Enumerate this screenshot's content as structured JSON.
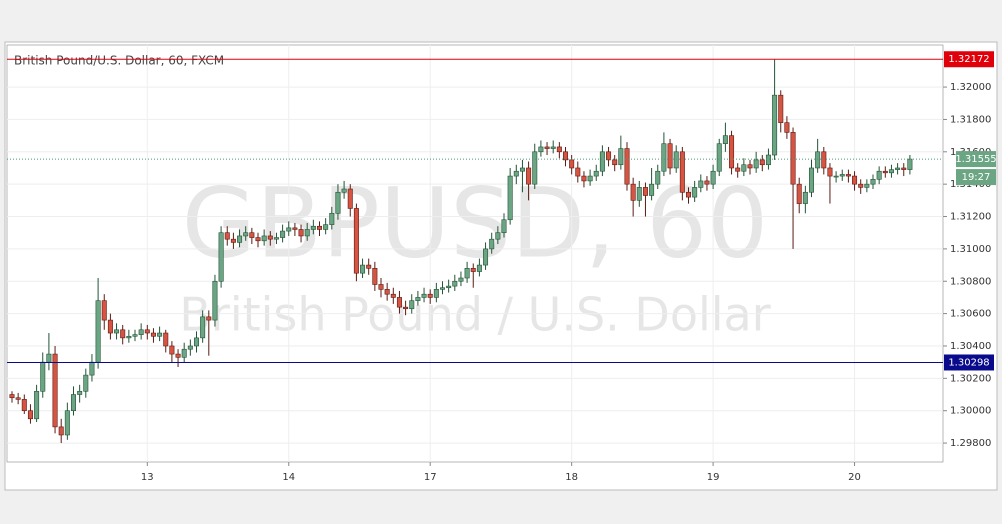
{
  "chart_data": {
    "type": "candlestick",
    "title": "British Pound/U.S. Dollar, 60, FXCM",
    "watermark": "GBPUSD, 60",
    "watermark_subtitle": "British Pound / U.S. Dollar",
    "countdown": "19:27",
    "up_color": "#6ba583",
    "down_color": "#d75442",
    "ylim": [
      1.29683,
      1.3226
    ],
    "yticks": [
      {
        "value": 1.298,
        "label": "1.29800"
      },
      {
        "value": 1.3,
        "label": "1.30000"
      },
      {
        "value": 1.302,
        "label": "1.30200"
      },
      {
        "value": 1.304,
        "label": "1.30400"
      },
      {
        "value": 1.306,
        "label": "1.30600"
      },
      {
        "value": 1.308,
        "label": "1.30800"
      },
      {
        "value": 1.31,
        "label": "1.31000"
      },
      {
        "value": 1.312,
        "label": "1.31200"
      },
      {
        "value": 1.314,
        "label": "1.31400"
      },
      {
        "value": 1.316,
        "label": "1.31600"
      },
      {
        "value": 1.318,
        "label": "1.31800"
      },
      {
        "value": 1.32,
        "label": "1.32000"
      }
    ],
    "grid": true,
    "lines": [
      {
        "value": 1.32172,
        "color": "#e0000a"
      },
      {
        "value": 1.30298,
        "color": "#0a0a8c"
      }
    ],
    "categories": [
      null,
      null,
      null,
      null,
      null,
      null,
      null,
      null,
      null,
      null,
      null,
      null,
      null,
      null,
      null,
      null,
      null,
      null,
      null,
      null,
      null,
      null,
      "13",
      null,
      null,
      null,
      null,
      null,
      null,
      null,
      null,
      null,
      null,
      null,
      null,
      null,
      null,
      null,
      null,
      null,
      null,
      null,
      null,
      null,
      null,
      "14",
      null,
      null,
      null,
      null,
      null,
      null,
      null,
      null,
      null,
      null,
      null,
      null,
      null,
      null,
      null,
      null,
      null,
      null,
      null,
      null,
      null,
      null,
      "17",
      null,
      null,
      null,
      null,
      null,
      null,
      null,
      null,
      null,
      null,
      null,
      null,
      null,
      null,
      null,
      null,
      null,
      null,
      null,
      null,
      null,
      null,
      "18",
      null,
      null,
      null,
      null,
      null,
      null,
      null,
      null,
      null,
      null,
      null,
      null,
      null,
      null,
      null,
      null,
      null,
      null,
      null,
      null,
      null,
      null,
      "19",
      null,
      null,
      null,
      null,
      null,
      null,
      null,
      null,
      null,
      null,
      null,
      null,
      null,
      null,
      null,
      null,
      null,
      null,
      null,
      null,
      null,
      null,
      "20",
      null,
      null,
      null,
      null
    ],
    "candles": [
      [
        1.301,
        1.3012,
        1.3005,
        1.3008
      ],
      [
        1.3008,
        1.3011,
        1.3004,
        1.3007
      ],
      [
        1.3007,
        1.301,
        1.2998,
        1.3
      ],
      [
        1.3,
        1.3004,
        1.2992,
        1.2995
      ],
      [
        1.2995,
        1.3016,
        1.2993,
        1.3012
      ],
      [
        1.3012,
        1.3036,
        1.3008,
        1.303
      ],
      [
        1.303,
        1.3048,
        1.3025,
        1.3035
      ],
      [
        1.3035,
        1.304,
        1.2986,
        1.299
      ],
      [
        1.299,
        1.2995,
        1.298,
        1.2985
      ],
      [
        1.2985,
        1.3005,
        1.2982,
        1.3
      ],
      [
        1.3,
        1.3015,
        1.2997,
        1.301
      ],
      [
        1.301,
        1.3016,
        1.3005,
        1.3012
      ],
      [
        1.3012,
        1.3026,
        1.3008,
        1.3022
      ],
      [
        1.3022,
        1.3035,
        1.3018,
        1.303
      ],
      [
        1.303,
        1.3082,
        1.3026,
        1.3068
      ],
      [
        1.3068,
        1.3072,
        1.305,
        1.3056
      ],
      [
        1.3056,
        1.306,
        1.3044,
        1.3048
      ],
      [
        1.3048,
        1.3054,
        1.3044,
        1.305
      ],
      [
        1.305,
        1.3053,
        1.3041,
        1.3045
      ],
      [
        1.3045,
        1.305,
        1.3042,
        1.3046
      ],
      [
        1.3046,
        1.305,
        1.3043,
        1.3047
      ],
      [
        1.3047,
        1.3054,
        1.3044,
        1.305
      ],
      [
        1.305,
        1.3053,
        1.3044,
        1.3048
      ],
      [
        1.3048,
        1.3051,
        1.3042,
        1.3046
      ],
      [
        1.3046,
        1.3052,
        1.3043,
        1.3048
      ],
      [
        1.3048,
        1.305,
        1.3036,
        1.304
      ],
      [
        1.304,
        1.3043,
        1.303,
        1.3035
      ],
      [
        1.3035,
        1.3038,
        1.3027,
        1.3033
      ],
      [
        1.3033,
        1.3042,
        1.303,
        1.3038
      ],
      [
        1.3038,
        1.3044,
        1.3034,
        1.304
      ],
      [
        1.304,
        1.3049,
        1.3036,
        1.3045
      ],
      [
        1.3045,
        1.3062,
        1.3042,
        1.3058
      ],
      [
        1.3058,
        1.3062,
        1.3034,
        1.3056
      ],
      [
        1.3056,
        1.3084,
        1.3052,
        1.308
      ],
      [
        1.308,
        1.3114,
        1.3076,
        1.311
      ],
      [
        1.311,
        1.3114,
        1.3102,
        1.3106
      ],
      [
        1.3106,
        1.311,
        1.31,
        1.3104
      ],
      [
        1.3104,
        1.3112,
        1.3101,
        1.3108
      ],
      [
        1.3108,
        1.3114,
        1.3105,
        1.311
      ],
      [
        1.311,
        1.3113,
        1.3103,
        1.3107
      ],
      [
        1.3107,
        1.311,
        1.3101,
        1.3105
      ],
      [
        1.3105,
        1.3112,
        1.3102,
        1.3108
      ],
      [
        1.3108,
        1.3111,
        1.3102,
        1.3106
      ],
      [
        1.3106,
        1.311,
        1.3103,
        1.3107
      ],
      [
        1.3107,
        1.3115,
        1.3104,
        1.3111
      ],
      [
        1.3111,
        1.3117,
        1.3108,
        1.3113
      ],
      [
        1.3113,
        1.3116,
        1.3108,
        1.3112
      ],
      [
        1.3112,
        1.3115,
        1.3104,
        1.3108
      ],
      [
        1.3108,
        1.3116,
        1.3105,
        1.3112
      ],
      [
        1.3112,
        1.3118,
        1.3109,
        1.3114
      ],
      [
        1.3114,
        1.3117,
        1.3108,
        1.3112
      ],
      [
        1.3112,
        1.3119,
        1.3109,
        1.3115
      ],
      [
        1.3115,
        1.3126,
        1.3112,
        1.3122
      ],
      [
        1.3122,
        1.314,
        1.3118,
        1.3135
      ],
      [
        1.3135,
        1.3142,
        1.3131,
        1.3137
      ],
      [
        1.3137,
        1.314,
        1.312,
        1.3125
      ],
      [
        1.3125,
        1.3128,
        1.308,
        1.3085
      ],
      [
        1.3085,
        1.3094,
        1.3082,
        1.309
      ],
      [
        1.309,
        1.3094,
        1.3084,
        1.3088
      ],
      [
        1.3088,
        1.3092,
        1.3074,
        1.3078
      ],
      [
        1.3078,
        1.3082,
        1.307,
        1.3075
      ],
      [
        1.3075,
        1.3079,
        1.3068,
        1.3072
      ],
      [
        1.3072,
        1.3076,
        1.3066,
        1.307
      ],
      [
        1.307,
        1.3074,
        1.306,
        1.3064
      ],
      [
        1.3064,
        1.3068,
        1.3059,
        1.3063
      ],
      [
        1.3063,
        1.3072,
        1.306,
        1.3068
      ],
      [
        1.3068,
        1.3074,
        1.3065,
        1.307
      ],
      [
        1.307,
        1.3076,
        1.3067,
        1.3072
      ],
      [
        1.3072,
        1.3075,
        1.3066,
        1.307
      ],
      [
        1.307,
        1.3079,
        1.3067,
        1.3075
      ],
      [
        1.3075,
        1.308,
        1.3072,
        1.3076
      ],
      [
        1.3076,
        1.3081,
        1.3073,
        1.3077
      ],
      [
        1.3077,
        1.3084,
        1.3074,
        1.308
      ],
      [
        1.308,
        1.3086,
        1.3077,
        1.3082
      ],
      [
        1.3082,
        1.3092,
        1.3079,
        1.3088
      ],
      [
        1.3088,
        1.3091,
        1.3076,
        1.3086
      ],
      [
        1.3086,
        1.3094,
        1.3083,
        1.309
      ],
      [
        1.309,
        1.3104,
        1.3087,
        1.31
      ],
      [
        1.31,
        1.311,
        1.3097,
        1.3106
      ],
      [
        1.3106,
        1.3114,
        1.3103,
        1.311
      ],
      [
        1.311,
        1.3122,
        1.3107,
        1.3118
      ],
      [
        1.3118,
        1.315,
        1.3115,
        1.3145
      ],
      [
        1.3145,
        1.3152,
        1.314,
        1.3148
      ],
      [
        1.3148,
        1.3155,
        1.3135,
        1.315
      ],
      [
        1.315,
        1.3154,
        1.313,
        1.314
      ],
      [
        1.314,
        1.3165,
        1.3137,
        1.316
      ],
      [
        1.316,
        1.3167,
        1.3157,
        1.3163
      ],
      [
        1.3163,
        1.3166,
        1.3158,
        1.3162
      ],
      [
        1.3162,
        1.3167,
        1.3159,
        1.3163
      ],
      [
        1.3163,
        1.3166,
        1.3156,
        1.316
      ],
      [
        1.316,
        1.3163,
        1.3151,
        1.3155
      ],
      [
        1.3155,
        1.3158,
        1.3146,
        1.315
      ],
      [
        1.315,
        1.3154,
        1.3141,
        1.3145
      ],
      [
        1.3145,
        1.3148,
        1.3138,
        1.3142
      ],
      [
        1.3142,
        1.3149,
        1.3139,
        1.3145
      ],
      [
        1.3145,
        1.3152,
        1.3142,
        1.3148
      ],
      [
        1.3148,
        1.3164,
        1.3145,
        1.316
      ],
      [
        1.316,
        1.3163,
        1.3151,
        1.3155
      ],
      [
        1.3155,
        1.3158,
        1.3148,
        1.3152
      ],
      [
        1.3152,
        1.317,
        1.3149,
        1.3162
      ],
      [
        1.3162,
        1.3166,
        1.3136,
        1.314
      ],
      [
        1.314,
        1.3144,
        1.312,
        1.313
      ],
      [
        1.313,
        1.3142,
        1.3126,
        1.3138
      ],
      [
        1.3138,
        1.3141,
        1.312,
        1.3133
      ],
      [
        1.3133,
        1.315,
        1.313,
        1.314
      ],
      [
        1.314,
        1.3152,
        1.3137,
        1.3148
      ],
      [
        1.3148,
        1.3172,
        1.3145,
        1.3165
      ],
      [
        1.3165,
        1.3168,
        1.3146,
        1.315
      ],
      [
        1.315,
        1.3164,
        1.3147,
        1.316
      ],
      [
        1.316,
        1.3163,
        1.313,
        1.3135
      ],
      [
        1.3135,
        1.3138,
        1.3128,
        1.3132
      ],
      [
        1.3132,
        1.3142,
        1.3129,
        1.3138
      ],
      [
        1.3138,
        1.3146,
        1.3135,
        1.3142
      ],
      [
        1.3142,
        1.3145,
        1.3136,
        1.314
      ],
      [
        1.314,
        1.3152,
        1.3137,
        1.3148
      ],
      [
        1.3148,
        1.3168,
        1.3145,
        1.3165
      ],
      [
        1.3165,
        1.3178,
        1.316,
        1.317
      ],
      [
        1.317,
        1.3173,
        1.3146,
        1.315
      ],
      [
        1.315,
        1.3153,
        1.3144,
        1.3148
      ],
      [
        1.3148,
        1.3156,
        1.3145,
        1.3152
      ],
      [
        1.3152,
        1.3155,
        1.3146,
        1.315
      ],
      [
        1.315,
        1.316,
        1.3147,
        1.3155
      ],
      [
        1.3155,
        1.3158,
        1.3148,
        1.3152
      ],
      [
        1.3152,
        1.3162,
        1.3149,
        1.3158
      ],
      [
        1.3158,
        1.3217,
        1.3155,
        1.3195
      ],
      [
        1.3195,
        1.3198,
        1.3172,
        1.3178
      ],
      [
        1.3178,
        1.3182,
        1.3168,
        1.3172
      ],
      [
        1.3172,
        1.3175,
        1.31,
        1.314
      ],
      [
        1.314,
        1.3144,
        1.3122,
        1.3128
      ],
      [
        1.3128,
        1.3139,
        1.3122,
        1.3135
      ],
      [
        1.3135,
        1.3155,
        1.3132,
        1.315
      ],
      [
        1.315,
        1.3168,
        1.3147,
        1.316
      ],
      [
        1.316,
        1.3163,
        1.3146,
        1.315
      ],
      [
        1.315,
        1.3153,
        1.3128,
        1.3145
      ],
      [
        1.3145,
        1.3148,
        1.3141,
        1.3145
      ],
      [
        1.3145,
        1.3149,
        1.3142,
        1.3146
      ],
      [
        1.3146,
        1.3149,
        1.3141,
        1.3145
      ],
      [
        1.3145,
        1.3148,
        1.3136,
        1.314
      ],
      [
        1.314,
        1.3143,
        1.3134,
        1.3138
      ],
      [
        1.3138,
        1.3143,
        1.3135,
        1.314
      ],
      [
        1.314,
        1.3146,
        1.3137,
        1.3143
      ],
      [
        1.3143,
        1.3151,
        1.314,
        1.3148
      ],
      [
        1.3148,
        1.3151,
        1.3144,
        1.3147
      ],
      [
        1.3147,
        1.3152,
        1.3144,
        1.3149
      ],
      [
        1.3149,
        1.3153,
        1.3146,
        1.315
      ],
      [
        1.315,
        1.3153,
        1.3145,
        1.3149
      ],
      [
        1.3149,
        1.3158,
        1.3146,
        1.31555
      ]
    ]
  }
}
